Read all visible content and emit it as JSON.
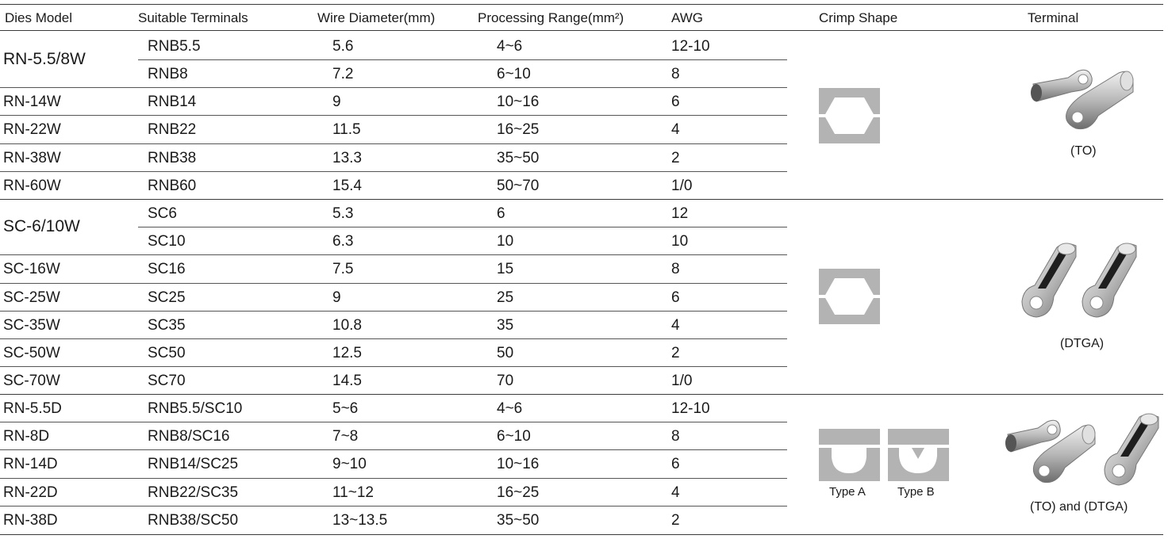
{
  "headers": [
    "Dies Model",
    "Suitable Terminals",
    "Wire Diameter(mm)",
    "Processing Range(mm²)",
    "AWG",
    "Crimp Shape",
    "Terminal"
  ],
  "groups": [
    {
      "rows": [
        {
          "model": "RN-5.5/8W",
          "terminal": "RNB5.5",
          "wire": "5.6",
          "range": "4~6",
          "awg": "12-10"
        },
        {
          "model": "",
          "terminal": "RNB8",
          "wire": "7.2",
          "range": "6~10",
          "awg": "8"
        },
        {
          "model": "RN-14W",
          "terminal": "RNB14",
          "wire": "9",
          "range": "10~16",
          "awg": "6"
        },
        {
          "model": "RN-22W",
          "terminal": "RNB22",
          "wire": "11.5",
          "range": "16~25",
          "awg": "4"
        },
        {
          "model": "RN-38W",
          "terminal": "RNB38",
          "wire": "13.3",
          "range": "35~50",
          "awg": "2"
        },
        {
          "model": "RN-60W",
          "terminal": "RNB60",
          "wire": "15.4",
          "range": "50~70",
          "awg": "1/0"
        }
      ],
      "crimp_icon": "hexagon-crimp-icon",
      "terminal_caption": "(TO)",
      "terminal_icon": "ring-terminal-icon"
    },
    {
      "rows": [
        {
          "model": "SC-6/10W",
          "terminal": "SC6",
          "wire": "5.3",
          "range": "6",
          "awg": "12"
        },
        {
          "model": "",
          "terminal": "SC10",
          "wire": "6.3",
          "range": "10",
          "awg": "10"
        },
        {
          "model": "SC-16W",
          "terminal": "SC16",
          "wire": "7.5",
          "range": "15",
          "awg": "8"
        },
        {
          "model": "SC-25W",
          "terminal": "SC25",
          "wire": "9",
          "range": "25",
          "awg": "6"
        },
        {
          "model": "SC-35W",
          "terminal": "SC35",
          "wire": "10.8",
          "range": "35",
          "awg": "4"
        },
        {
          "model": "SC-50W",
          "terminal": "SC50",
          "wire": "12.5",
          "range": "50",
          "awg": "2"
        },
        {
          "model": "SC-70W",
          "terminal": "SC70",
          "wire": "14.5",
          "range": "70",
          "awg": "1/0"
        }
      ],
      "crimp_icon": "hexagon-crimp-icon",
      "terminal_caption": "(DTGA)",
      "terminal_icon": "copper-tube-lug-icon"
    },
    {
      "rows": [
        {
          "model": "RN-5.5D",
          "terminal": "RNB5.5/SC10",
          "wire": "5~6",
          "range": "4~6",
          "awg": "12-10"
        },
        {
          "model": "RN-8D",
          "terminal": "RNB8/SC16",
          "wire": "7~8",
          "range": "6~10",
          "awg": "8"
        },
        {
          "model": "RN-14D",
          "terminal": "RNB14/SC25",
          "wire": "9~10",
          "range": "10~16",
          "awg": "6"
        },
        {
          "model": "RN-22D",
          "terminal": "RNB22/SC35",
          "wire": "11~12",
          "range": "16~25",
          "awg": "4"
        },
        {
          "model": "RN-38D",
          "terminal": "RNB38/SC50",
          "wire": "13~13.5",
          "range": "35~50",
          "awg": "2"
        }
      ],
      "crimp_types": [
        "Type A",
        "Type B"
      ],
      "crimp_icon": "indent-crimp-icon",
      "terminal_caption": "(TO) and (DTGA)",
      "terminal_icon": "mixed-terminals-icon"
    }
  ],
  "colors": {
    "crimp_gray": "#b3b3b3",
    "rule": "#3a3a3a",
    "metal_light": "#e6e6e6",
    "metal_dark": "#7a7a7a"
  }
}
